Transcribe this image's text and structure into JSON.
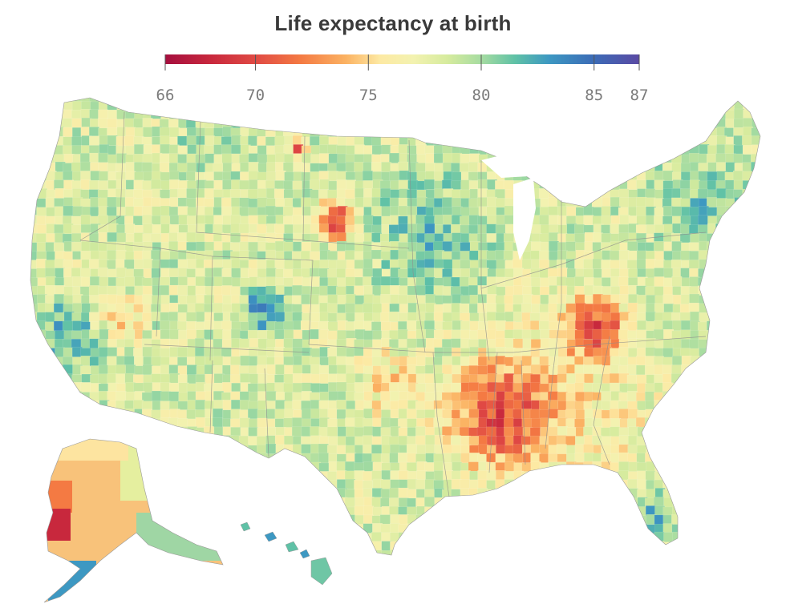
{
  "title": "Life expectancy at birth",
  "legend": {
    "min": 66,
    "max": 87,
    "ticks": [
      66,
      70,
      75,
      80,
      85,
      87
    ],
    "color_stops": [
      {
        "value": 66,
        "color": "#a50f3e"
      },
      {
        "value": 68,
        "color": "#c8283d"
      },
      {
        "value": 70,
        "color": "#e04a44"
      },
      {
        "value": 72,
        "color": "#f47a43"
      },
      {
        "value": 74,
        "color": "#fbb262"
      },
      {
        "value": 75.5,
        "color": "#fde9a3"
      },
      {
        "value": 77,
        "color": "#f3f2b0"
      },
      {
        "value": 78.5,
        "color": "#d6eb9e"
      },
      {
        "value": 80,
        "color": "#a6dca1"
      },
      {
        "value": 81.5,
        "color": "#5fc1a6"
      },
      {
        "value": 83,
        "color": "#3d98c2"
      },
      {
        "value": 85,
        "color": "#3c6bb6"
      },
      {
        "value": 87,
        "color": "#5a4aa4"
      }
    ]
  },
  "map": {
    "regions": [
      {
        "name": "conus",
        "base_value": 78.5
      },
      {
        "name": "alaska",
        "base_value": 75
      },
      {
        "name": "hawaii",
        "base_value": 81.5
      }
    ],
    "highlights": [
      {
        "area": "pine-ridge",
        "value": 66.5
      },
      {
        "area": "standing-rock",
        "value": 67
      },
      {
        "area": "mississippi-delta",
        "value": 69
      },
      {
        "area": "appalachia",
        "value": 69.5
      },
      {
        "area": "western-alaska",
        "value": 67
      },
      {
        "area": "colorado-mountains",
        "value": 86.5
      },
      {
        "area": "upper-midwest",
        "value": 82
      },
      {
        "area": "new-england",
        "value": 81
      },
      {
        "area": "south-florida",
        "value": 83
      },
      {
        "area": "california-coast",
        "value": 82.5
      },
      {
        "area": "southeast",
        "value": 74.5
      },
      {
        "area": "oklahoma",
        "value": 74.5
      },
      {
        "area": "nevada",
        "value": 74
      }
    ]
  }
}
